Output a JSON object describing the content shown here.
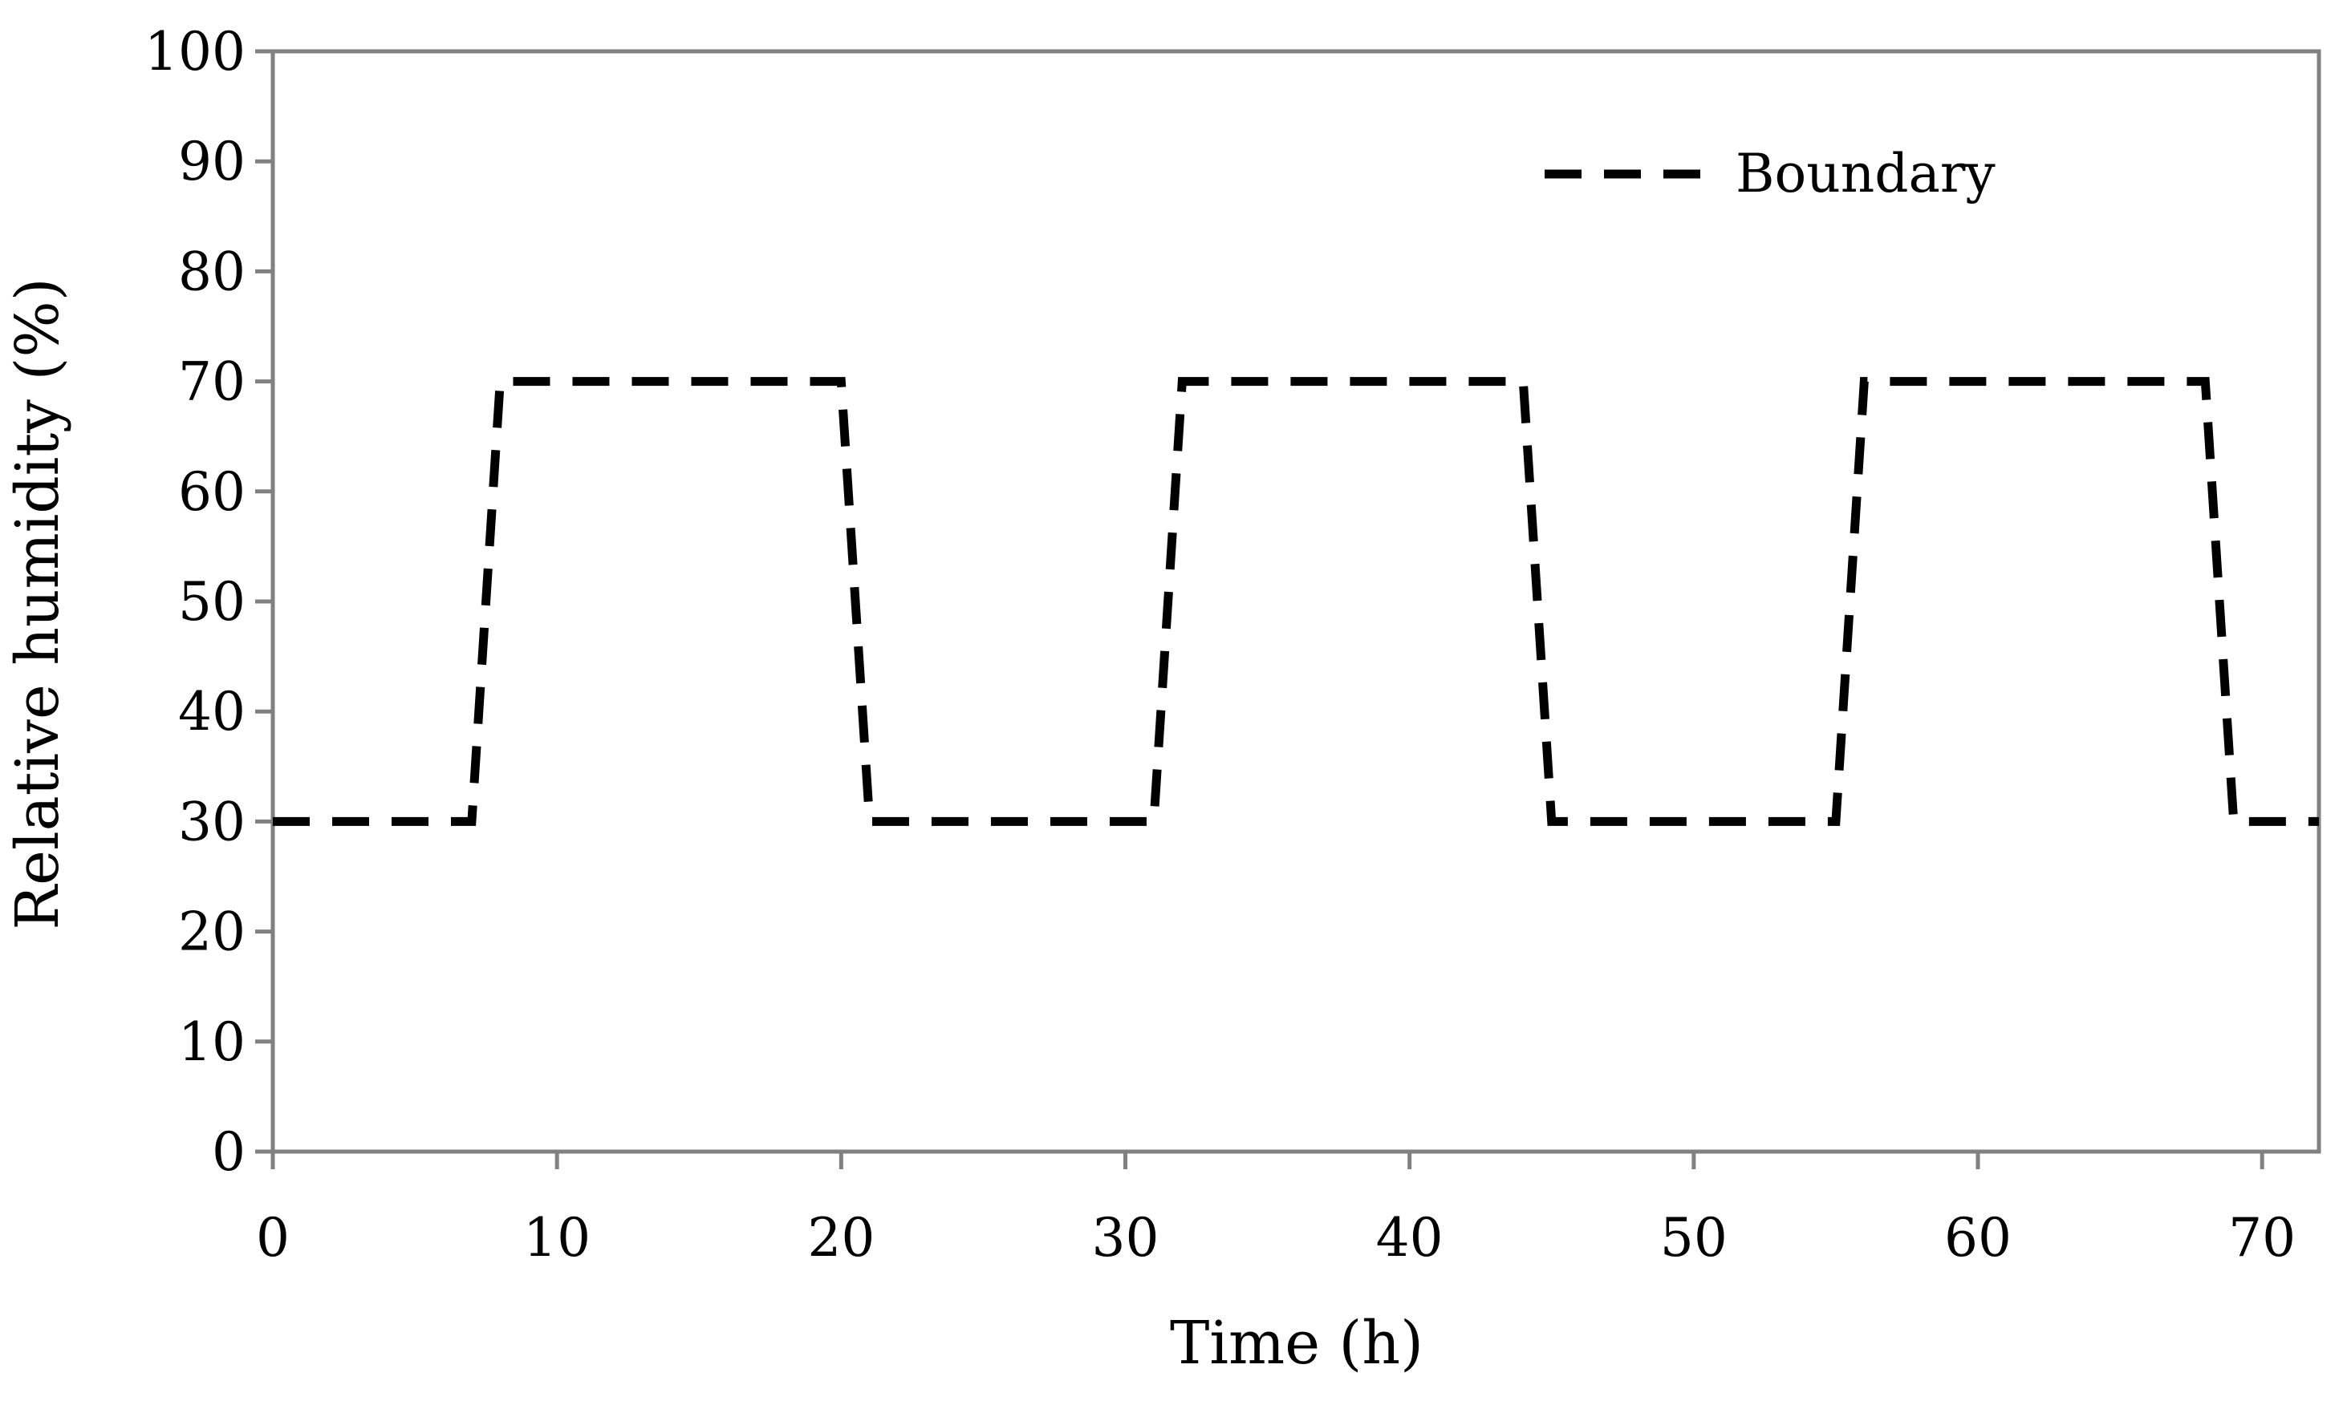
{
  "chart_data": {
    "type": "line",
    "title": "",
    "xlabel": "Time (h)",
    "ylabel": "Relative humidity (%)",
    "xlim": [
      0,
      72
    ],
    "ylim": [
      0,
      100
    ],
    "xticks": [
      0,
      10,
      20,
      30,
      40,
      50,
      60,
      70
    ],
    "yticks": [
      0,
      10,
      20,
      30,
      40,
      50,
      60,
      70,
      80,
      90,
      100
    ],
    "grid": false,
    "legend": {
      "position": "top-right",
      "entries": [
        "Boundary"
      ]
    },
    "series": [
      {
        "name": "Boundary",
        "line_style": "dashed",
        "color": "#000000",
        "x": [
          0,
          7,
          8,
          20,
          21,
          31,
          32,
          44,
          45,
          55,
          56,
          68,
          69,
          72
        ],
        "y": [
          30,
          30,
          70,
          70,
          30,
          30,
          70,
          70,
          30,
          30,
          70,
          70,
          30,
          30
        ]
      }
    ]
  },
  "colors": {
    "axis": "#808080",
    "series": "#000000",
    "background": "#ffffff"
  }
}
